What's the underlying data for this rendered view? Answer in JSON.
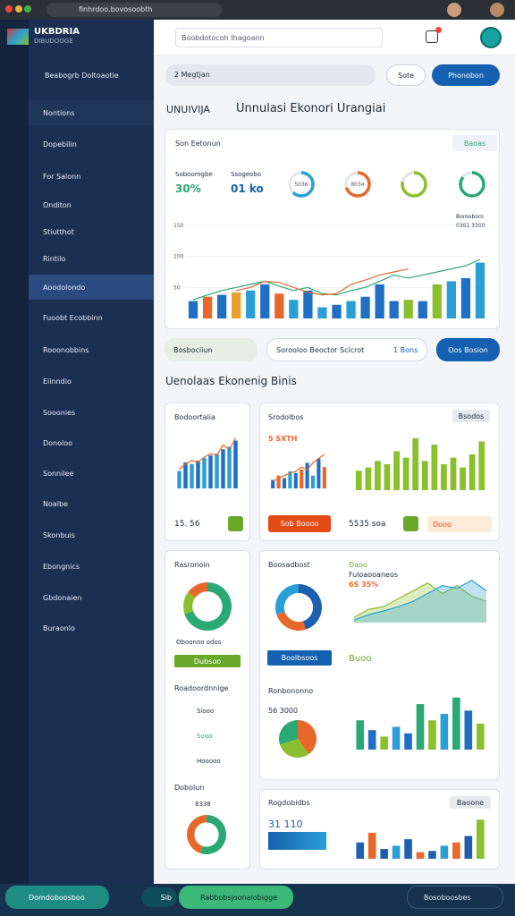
{
  "browser": {
    "url": "finhrdoo.bovosoobth"
  },
  "brand": {
    "name": "UKBDRIA",
    "sub": "DIBUDOOGE"
  },
  "sidebar": {
    "header": "Beabogrb Doltoaotie",
    "items": [
      "Nontions",
      "Dopebilin",
      "For Salonn",
      "Onditon",
      "Stiutthot",
      "Rintilo",
      "Aoodolondo",
      "Fuoobt Ecobbinn",
      "Rooonobbins",
      "Elinndio",
      "Sooonies",
      "Donoloo",
      "Sonnilee",
      "Noalbe",
      "Skonbuis",
      "Ebongnics",
      "Gbdonaien",
      "Buraonlo"
    ]
  },
  "topbar": {
    "search": "Boobdotocoh Ihagoann"
  },
  "toolbar": {
    "breadcrumb": "2 Megtjan",
    "button_secondary": "Sote",
    "button_primary": "Phonobon"
  },
  "page": {
    "title_prefix": "UNUIVIJA",
    "title": "Unnulasi Ekonori Urangiai"
  },
  "overview": {
    "header": "Son Eetonun",
    "tab": "Baoas",
    "kpis": [
      {
        "label": "Soboomgbe",
        "value": "30%"
      },
      {
        "label": "Ssogeobo",
        "value": "01 ko"
      }
    ],
    "legend": [
      "Borooboro",
      "0361 3300"
    ]
  },
  "filters": {
    "dropdown": "Bosbociiun",
    "input": "Sorooloo  Beoctor Scicrot",
    "tag": "1 Bons",
    "button": "Oos Bosion"
  },
  "section": {
    "title": "Uenolaas Ekonenig Binis"
  },
  "cards": {
    "a": {
      "title": "Bodoortalia",
      "value": "15. 56"
    },
    "b": {
      "title": "Srodolbos",
      "note": "5 SXTH",
      "button": "Sob Boooo"
    },
    "c": {
      "tag": "Bsodos",
      "value": "5535 soa",
      "button": "Dooo"
    },
    "d": {
      "title": "Rasronoin",
      "caption": "Oboonoo odos",
      "button": "Dubsoo",
      "list_title": "Roadoordnnige",
      "list": [
        "Siooo",
        "Sooo",
        "Hooooo"
      ],
      "sub_title": "Dobolun",
      "sub_value": "8338"
    },
    "e": {
      "title": "Boosadbost",
      "button": "Boolbsoos",
      "area_title": "Daoo",
      "area_sub": "Fuloaooaneos",
      "area_value": "6S 35%",
      "link": "Buoo",
      "pie_title": "Ronbononno",
      "pie_value": "56 3000"
    },
    "f": {
      "title": "Rogdobidbs",
      "tag": "Baoone",
      "value": "31 110"
    }
  },
  "bottombar": {
    "left": "Domdoboosboo",
    "chip": "Sib",
    "center": "Rabbobsjoonaiobigge",
    "right": "Bosoboosbes"
  },
  "chart_data": [
    {
      "type": "bar",
      "ylim": [
        0,
        150
      ],
      "yticks": [
        50,
        100,
        150
      ],
      "grid": true,
      "series": [
        {
          "type": "bar",
          "colors": [
            "#1f6fc4",
            "#e8672a",
            "#1f6fc4",
            "#e8a22a",
            "#2a9fd6",
            "#1f6fc4",
            "#e8672a",
            "#2a9fd6",
            "#1f6fc4",
            "#2a9fd6",
            "#1f6fc4",
            "#2a9fd6",
            "#1f6fc4",
            "#1f6fc4",
            "#1f6fc4",
            "#8cbf2e",
            "#1f6fc4",
            "#8cbf2e",
            "#2a9fd6",
            "#1f6fc4",
            "#2a9fd6"
          ],
          "values": [
            28,
            35,
            38,
            42,
            45,
            55,
            40,
            30,
            45,
            18,
            22,
            28,
            35,
            55,
            28,
            30,
            28,
            55,
            60,
            65,
            90
          ]
        },
        {
          "type": "line",
          "color": "#2aa876",
          "values": [
            30,
            38,
            45,
            50,
            55,
            60,
            52,
            45,
            50,
            40,
            38,
            45,
            50,
            60,
            70,
            65,
            70,
            75,
            80,
            85,
            95
          ]
        },
        {
          "type": "line",
          "color": "#e8672a",
          "values": [
            null,
            null,
            null,
            45,
            50,
            60,
            58,
            50,
            42,
            38,
            40,
            55,
            62,
            70,
            75,
            80,
            null,
            null,
            null,
            null,
            null
          ]
        }
      ]
    },
    {
      "type": "gauge",
      "value": 62,
      "color": "#2a9fd6",
      "label": "5036"
    },
    {
      "type": "gauge",
      "value": 70,
      "color": "#e8672a",
      "label": "8034"
    },
    {
      "type": "gauge",
      "value": 78,
      "color": "#8cbf2e"
    },
    {
      "type": "gauge",
      "value": 85,
      "color": "#2aa876"
    },
    {
      "type": "bar",
      "series": [
        {
          "type": "bar",
          "colors": [
            "#2a9fd6",
            "#1f6fc4",
            "#2a9fd6",
            "#1f6fc4",
            "#2a9fd6",
            "#1f6fc4",
            "#2a9fd6",
            "#1f6fc4",
            "#2a9fd6",
            "#1f6fc4"
          ],
          "values": [
            20,
            30,
            28,
            32,
            35,
            38,
            40,
            45,
            48,
            55
          ]
        },
        {
          "type": "line",
          "color": "#e8672a",
          "values": [
            22,
            28,
            32,
            30,
            36,
            40,
            38,
            50,
            45,
            58
          ]
        }
      ]
    },
    {
      "type": "bar",
      "series": [
        {
          "type": "bar",
          "colors": [
            "#1f6fc4",
            "#e8672a",
            "#1f6fc4",
            "#2a9fd6",
            "#1f6fc4",
            "#e8672a",
            "#1f6fc4",
            "#2a9fd6",
            "#1f6fc4",
            "#e8672a"
          ],
          "values": [
            10,
            15,
            12,
            20,
            18,
            22,
            30,
            15,
            35,
            25
          ]
        },
        {
          "type": "line",
          "color": "#e8672a",
          "values": [
            8,
            12,
            15,
            18,
            20,
            25,
            22,
            30,
            35,
            40
          ]
        }
      ]
    },
    {
      "type": "bar",
      "series": [
        {
          "type": "bar",
          "color": "#8cbf2e",
          "values": [
            30,
            35,
            45,
            40,
            60,
            50,
            80,
            45,
            70,
            40,
            50,
            35,
            55,
            75
          ]
        }
      ]
    },
    {
      "type": "donut",
      "values": [
        70,
        15,
        15
      ],
      "colors": [
        "#2aa876",
        "#8cbf2e",
        "#e8672a"
      ]
    },
    {
      "type": "donut",
      "values": [
        45,
        25,
        30
      ],
      "colors": [
        "#1f5fb0",
        "#e8672a",
        "#2a9fd6"
      ]
    },
    {
      "type": "area",
      "series": [
        {
          "color": "#8cbf2e",
          "values": [
            10,
            25,
            30,
            45,
            60,
            75,
            55,
            70,
            50,
            40
          ]
        },
        {
          "color": "#2a9fd6",
          "values": [
            5,
            15,
            22,
            30,
            40,
            55,
            70,
            65,
            80,
            60
          ]
        }
      ]
    },
    {
      "type": "pie",
      "values": [
        40,
        30,
        30
      ],
      "colors": [
        "#e8672a",
        "#8cbf2e",
        "#2aa876"
      ]
    },
    {
      "type": "bar",
      "series": [
        {
          "type": "bar",
          "colors": [
            "#2aa876",
            "#1f6fc4",
            "#8cbf2e",
            "#2a9fd6",
            "#1f6fc4",
            "#2aa876",
            "#8cbf2e",
            "#2a9fd6",
            "#2aa876",
            "#1f6fc4",
            "#8cbf2e"
          ],
          "values": [
            45,
            30,
            20,
            35,
            25,
            70,
            45,
            55,
            80,
            60,
            40
          ]
        }
      ]
    },
    {
      "type": "donut",
      "values": [
        55,
        45
      ],
      "colors": [
        "#2aa876",
        "#e8672a"
      ]
    },
    {
      "type": "bar",
      "series": [
        {
          "type": "bar",
          "colors": [
            "#1f5fb0",
            "#e8672a",
            "#1f5fb0",
            "#2a9fd6",
            "#1f5fb0",
            "#e8672a",
            "#1f5fb0",
            "#2a9fd6",
            "#e8672a",
            "#1f5fb0",
            "#8cbf2e"
          ],
          "values": [
            25,
            40,
            15,
            20,
            30,
            10,
            12,
            20,
            25,
            35,
            60
          ]
        }
      ]
    }
  ]
}
